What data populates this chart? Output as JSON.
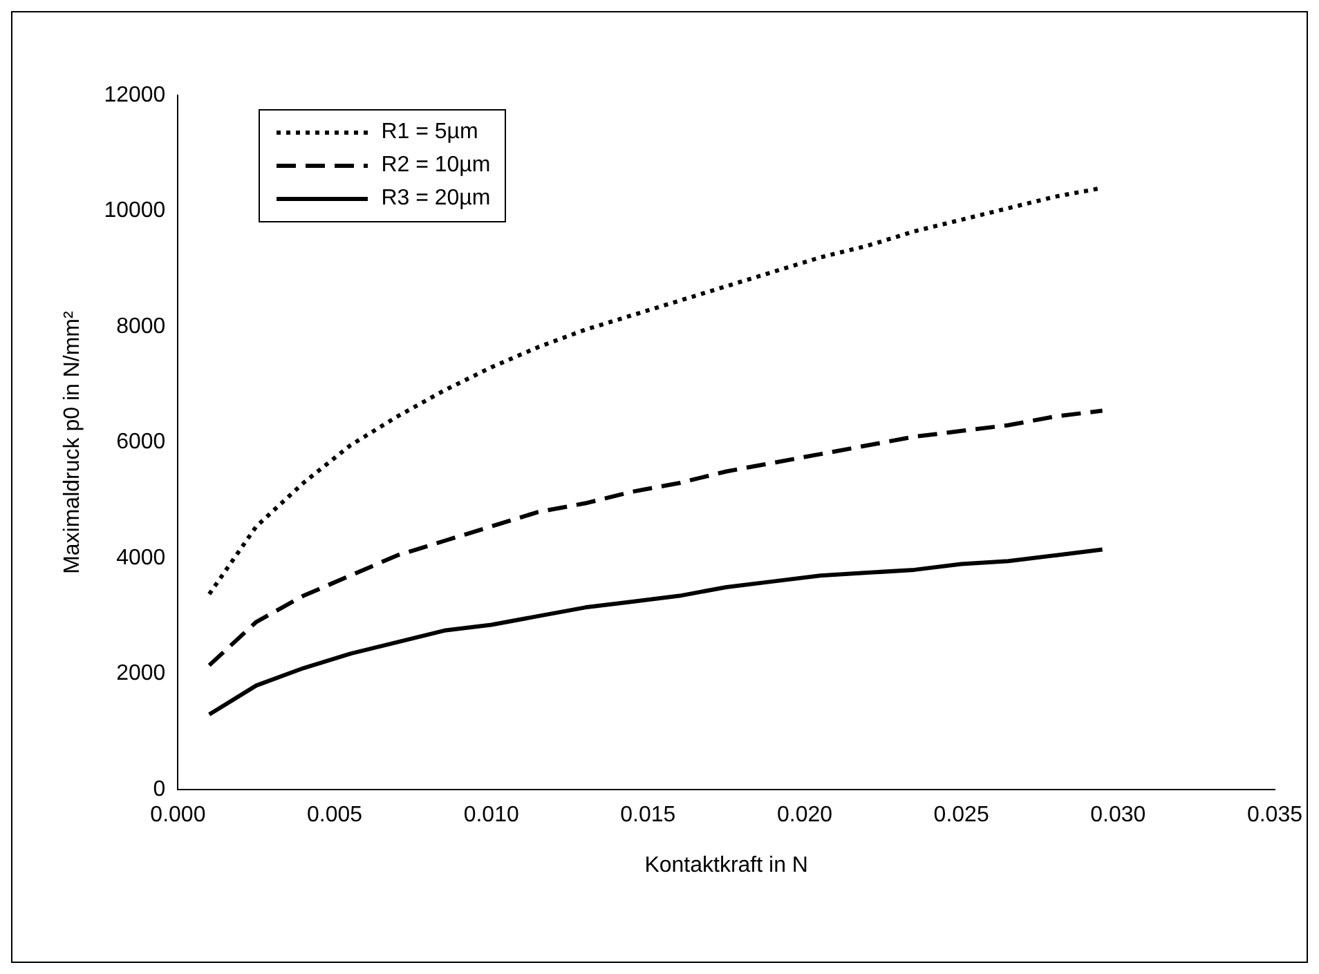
{
  "chart_data": {
    "type": "line",
    "xlabel": "Kontaktkraft in N",
    "ylabel": "Maximaldruck p0 in N/mm²",
    "x": [
      0.001,
      0.0025,
      0.004,
      0.0055,
      0.007,
      0.0085,
      0.01,
      0.0115,
      0.013,
      0.0145,
      0.016,
      0.0175,
      0.019,
      0.0205,
      0.022,
      0.0235,
      0.025,
      0.0265,
      0.028,
      0.0295
    ],
    "series": [
      {
        "name": "R1 = 5µm",
        "color": "#000000",
        "line_style": "dotted",
        "values": [
          3380,
          4550,
          5300,
          5950,
          6450,
          6900,
          7300,
          7650,
          7950,
          8200,
          8450,
          8700,
          8950,
          9200,
          9400,
          9650,
          9850,
          10050,
          10250,
          10400
        ]
      },
      {
        "name": "R2 = 10µm",
        "color": "#000000",
        "line_style": "dashed",
        "values": [
          2150,
          2900,
          3350,
          3700,
          4050,
          4300,
          4550,
          4800,
          4950,
          5150,
          5300,
          5500,
          5650,
          5800,
          5950,
          6100,
          6200,
          6300,
          6450,
          6550
        ]
      },
      {
        "name": "R3 = 20µm",
        "color": "#000000",
        "line_style": "solid",
        "values": [
          1300,
          1800,
          2100,
          2350,
          2550,
          2750,
          2850,
          3000,
          3150,
          3250,
          3350,
          3500,
          3600,
          3700,
          3750,
          3800,
          3900,
          3950,
          4050,
          4150
        ]
      }
    ],
    "xlim": [
      0,
      0.035
    ],
    "xticks": [
      {
        "value": 0,
        "label": "0.000"
      },
      {
        "value": 0.005,
        "label": "0.005"
      },
      {
        "value": 0.01,
        "label": "0.010"
      },
      {
        "value": 0.015,
        "label": "0.015"
      },
      {
        "value": 0.02,
        "label": "0.020"
      },
      {
        "value": 0.025,
        "label": "0.025"
      },
      {
        "value": 0.03,
        "label": "0.030"
      },
      {
        "value": 0.035,
        "label": "0.035"
      }
    ],
    "ylim": [
      0,
      12000
    ],
    "yticks": [
      0,
      2000,
      4000,
      6000,
      8000,
      10000,
      12000
    ],
    "grid": false,
    "legend": "top left",
    "marker": "none"
  }
}
